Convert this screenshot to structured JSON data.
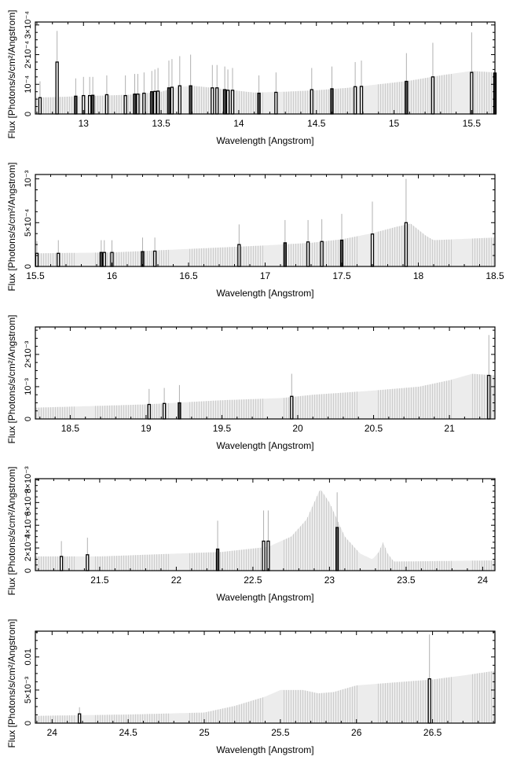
{
  "chart_data": [
    {
      "type": "bar",
      "xlabel": "Wavelength [Angstrom]",
      "ylabel": "Flux [Photons/s/cm²/Angstrom]",
      "xlim": [
        12.69,
        15.65
      ],
      "ylim": [
        0,
        0.00031
      ],
      "xticks": [
        13,
        13.5,
        14,
        14.5,
        15,
        15.5
      ],
      "xtick_labels": [
        "13",
        "13.5",
        "14",
        "14.5",
        "15",
        "15.5"
      ],
      "yticks": [
        0,
        0.0001,
        0.0002,
        0.0003
      ],
      "ytick_labels": [
        "0",
        "10⁻⁴",
        "2×10⁻⁴",
        "3×10⁻⁴"
      ],
      "continuum": [
        [
          12.69,
          5.5e-05
        ],
        [
          13.0,
          6e-05
        ],
        [
          13.3,
          6.5e-05
        ],
        [
          13.5,
          7.5e-05
        ],
        [
          13.6,
          9e-05
        ],
        [
          13.7,
          9.5e-05
        ],
        [
          13.8,
          9e-05
        ],
        [
          14.0,
          7.8e-05
        ],
        [
          14.1,
          7.2e-05
        ],
        [
          14.3,
          7.5e-05
        ],
        [
          14.5,
          8e-05
        ],
        [
          14.7,
          8.8e-05
        ],
        [
          14.9,
          0.0001
        ],
        [
          15.1,
          0.000112
        ],
        [
          15.3,
          0.00013
        ],
        [
          15.5,
          0.000145
        ],
        [
          15.65,
          0.00014
        ]
      ],
      "lines": [
        [
          12.72,
          5.5e-05,
          0.00011
        ],
        [
          12.83,
          0.000175,
          0.00028
        ],
        [
          12.95,
          6e-05,
          0.00012
        ],
        [
          13.0,
          6.2e-05,
          0.000125
        ],
        [
          13.04,
          6.2e-05,
          0.000125
        ],
        [
          13.06,
          6.3e-05,
          0.000125
        ],
        [
          13.15,
          6.5e-05,
          0.00013
        ],
        [
          13.27,
          6.2e-05,
          0.00013
        ],
        [
          13.33,
          6.7e-05,
          0.000135
        ],
        [
          13.35,
          6.7e-05,
          0.000135
        ],
        [
          13.39,
          7e-05,
          0.00014
        ],
        [
          13.44,
          7.5e-05,
          0.000145
        ],
        [
          13.46,
          7.6e-05,
          0.00015
        ],
        [
          13.48,
          7.7e-05,
          0.000155
        ],
        [
          13.55,
          8.8e-05,
          0.00018
        ],
        [
          13.57,
          9e-05,
          0.000185
        ],
        [
          13.62,
          9.5e-05,
          0.000195
        ],
        [
          13.69,
          9.5e-05,
          0.0002
        ],
        [
          13.83,
          8.8e-05,
          0.000165
        ],
        [
          13.86,
          8.8e-05,
          0.000165
        ],
        [
          13.91,
          8.2e-05,
          0.00016
        ],
        [
          13.93,
          8e-05,
          0.00015
        ],
        [
          13.96,
          8e-05,
          0.000155
        ],
        [
          14.13,
          7e-05,
          0.00013
        ],
        [
          14.24,
          7.3e-05,
          0.00014
        ],
        [
          14.47,
          8.2e-05,
          0.000155
        ],
        [
          14.6,
          8.5e-05,
          0.00016
        ],
        [
          14.75,
          9.2e-05,
          0.000175
        ],
        [
          14.79,
          9.3e-05,
          0.00018
        ],
        [
          15.08,
          0.00011,
          0.000205
        ],
        [
          15.25,
          0.000125,
          0.00024
        ],
        [
          15.5,
          0.00014,
          0.000275
        ],
        [
          15.65,
          0.000138,
          0.00027
        ]
      ]
    },
    {
      "type": "bar",
      "xlabel": "Wavelength [Angstrom]",
      "ylabel": "Flux [Photons/s/cm²/Angstrom]",
      "xlim": [
        15.5,
        18.5
      ],
      "ylim": [
        0,
        0.00105
      ],
      "xticks": [
        15.5,
        16,
        16.5,
        17,
        17.5,
        18,
        18.5
      ],
      "xtick_labels": [
        "15.5",
        "16",
        "16.5",
        "17",
        "17.5",
        "18",
        "18.5"
      ],
      "yticks": [
        0,
        0.0005,
        0.001
      ],
      "ytick_labels": [
        "0",
        "5×10⁻⁴",
        "10⁻³"
      ],
      "continuum": [
        [
          15.5,
          0.00015
        ],
        [
          16.0,
          0.00016
        ],
        [
          16.5,
          0.0002
        ],
        [
          17.0,
          0.00024
        ],
        [
          17.3,
          0.00027
        ],
        [
          17.5,
          0.00031
        ],
        [
          17.7,
          0.00038
        ],
        [
          17.85,
          0.00045
        ],
        [
          17.95,
          0.00049
        ],
        [
          18.05,
          0.00035
        ],
        [
          18.1,
          0.0003
        ],
        [
          18.5,
          0.00033
        ]
      ],
      "lines": [
        [
          15.51,
          0.00015,
          0.00029
        ],
        [
          15.65,
          0.00015,
          0.0003
        ],
        [
          15.93,
          0.00016,
          0.0003
        ],
        [
          15.95,
          0.00016,
          0.0003
        ],
        [
          16.0,
          0.00016,
          0.0003
        ],
        [
          16.2,
          0.00017,
          0.00033
        ],
        [
          16.28,
          0.000175,
          0.00033
        ],
        [
          16.83,
          0.00025,
          0.00048
        ],
        [
          17.13,
          0.00027,
          0.00053
        ],
        [
          17.28,
          0.00028,
          0.00053
        ],
        [
          17.37,
          0.000285,
          0.00054
        ],
        [
          17.5,
          0.0003,
          0.0006
        ],
        [
          17.7,
          0.00037,
          0.00074
        ],
        [
          17.92,
          0.0005,
          0.001
        ]
      ]
    },
    {
      "type": "bar",
      "xlabel": "Wavelength [Angstrom]",
      "ylabel": "Flux [Photons/s/cm²/Angstrom]",
      "xlim": [
        18.27,
        21.3
      ],
      "ylim": [
        0,
        0.00285
      ],
      "xticks": [
        18.5,
        19,
        19.5,
        20,
        20.5,
        21
      ],
      "xtick_labels": [
        "18.5",
        "19",
        "19.5",
        "20",
        "20.5",
        "21"
      ],
      "yticks": [
        0,
        0.001,
        0.002
      ],
      "ytick_labels": [
        "0",
        "10⁻³",
        "2×10⁻³"
      ],
      "continuum": [
        [
          18.27,
          0.00035
        ],
        [
          18.5,
          0.00038
        ],
        [
          19.0,
          0.00045
        ],
        [
          19.5,
          0.00058
        ],
        [
          19.9,
          0.00065
        ],
        [
          20.1,
          0.00075
        ],
        [
          20.5,
          0.00088
        ],
        [
          20.8,
          0.001
        ],
        [
          21.0,
          0.0012
        ],
        [
          21.15,
          0.0014
        ],
        [
          21.3,
          0.00135
        ]
      ],
      "lines": [
        [
          19.02,
          0.00045,
          0.00093
        ],
        [
          19.12,
          0.00048,
          0.00096
        ],
        [
          19.22,
          0.0005,
          0.00105
        ],
        [
          19.96,
          0.0007,
          0.0014
        ],
        [
          21.26,
          0.00135,
          0.0026
        ]
      ]
    },
    {
      "type": "bar",
      "xlabel": "Wavelength [Angstrom]",
      "ylabel": "Flux [Photons/s/cm²/Angstrom]",
      "xlim": [
        21.08,
        24.08
      ],
      "ylim": [
        0,
        0.0081
      ],
      "xticks": [
        21.5,
        22,
        22.5,
        23,
        23.5,
        24
      ],
      "xtick_labels": [
        "21.5",
        "22",
        "22.5",
        "23",
        "23.5",
        "24"
      ],
      "yticks": [
        0,
        0.002,
        0.004,
        0.006,
        0.008
      ],
      "ytick_labels": [
        "0",
        "2×10⁻³",
        "4×10⁻³",
        "6×10⁻³",
        "8×10⁻³"
      ],
      "continuum": [
        [
          21.08,
          0.00125
        ],
        [
          21.5,
          0.00125
        ],
        [
          22.0,
          0.0015
        ],
        [
          22.3,
          0.00165
        ],
        [
          22.6,
          0.0021
        ],
        [
          22.75,
          0.003
        ],
        [
          22.85,
          0.0045
        ],
        [
          22.94,
          0.0072
        ],
        [
          23.0,
          0.006
        ],
        [
          23.1,
          0.003
        ],
        [
          23.2,
          0.0015
        ],
        [
          23.28,
          0.001
        ],
        [
          23.32,
          0.0016
        ],
        [
          23.35,
          0.0025
        ],
        [
          23.38,
          0.0015
        ],
        [
          23.42,
          0.0008
        ],
        [
          24.08,
          0.0009
        ]
      ],
      "lines": [
        [
          21.25,
          0.00125,
          0.0026
        ],
        [
          21.42,
          0.0014,
          0.0029
        ],
        [
          22.27,
          0.0019,
          0.0044
        ],
        [
          22.57,
          0.0026,
          0.0053
        ],
        [
          22.6,
          0.0026,
          0.0053
        ],
        [
          23.05,
          0.0038,
          0.0069
        ]
      ]
    },
    {
      "type": "bar",
      "xlabel": "Wavelength [Angstrom]",
      "ylabel": "Flux [Photons/s/cm²/Angstrom]",
      "xlim": [
        23.89,
        26.91
      ],
      "ylim": [
        0,
        0.0139
      ],
      "xticks": [
        24,
        24.5,
        25,
        25.5,
        26,
        26.5
      ],
      "xtick_labels": [
        "24",
        "24.5",
        "25",
        "25.5",
        "26",
        "26.5"
      ],
      "yticks": [
        0,
        0.005,
        0.01
      ],
      "ytick_labels": [
        "0",
        "5×10⁻³",
        "0.01"
      ],
      "continuum": [
        [
          23.89,
          0.0011
        ],
        [
          24.5,
          0.0013
        ],
        [
          25.0,
          0.0016
        ],
        [
          25.2,
          0.0026
        ],
        [
          25.4,
          0.004
        ],
        [
          25.5,
          0.005
        ],
        [
          25.65,
          0.005
        ],
        [
          25.75,
          0.0045
        ],
        [
          25.85,
          0.0047
        ],
        [
          26.0,
          0.0057
        ],
        [
          26.5,
          0.0066
        ],
        [
          26.7,
          0.0072
        ],
        [
          26.91,
          0.0079
        ]
      ],
      "lines": [
        [
          24.18,
          0.0014,
          0.0024
        ],
        [
          26.48,
          0.0067,
          0.0134
        ]
      ]
    }
  ]
}
